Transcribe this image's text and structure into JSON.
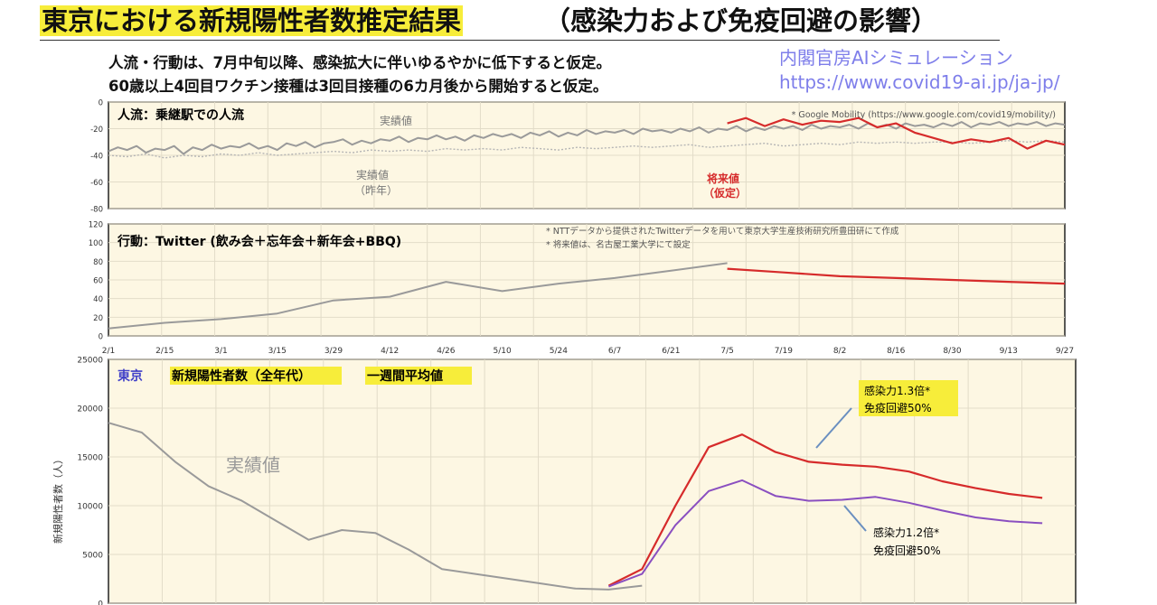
{
  "page": {
    "title_highlight": "東京における新規陽性者数推定結果",
    "title_rest": "（感染力および免疫回避の影響）",
    "assumption1": "人流・行動は、7月中旬以降、感染拡大に伴いゆるやかに低下すると仮定。",
    "assumption2": "60歳以上4回目ワクチン接種は3回目接種の6カ月後から開始すると仮定。",
    "credit_org": "内閣官房AIシミュレーション",
    "credit_url": "https://www.covid19-ai.jp/ja-jp/"
  },
  "colors": {
    "panel_bg": "#fdf7e3",
    "actual": "#9a9a9a",
    "last_year": "#b5b5b5",
    "forecast": "#d62b2b",
    "scenario_low": "#8a4fc0",
    "highlight": "#f7ed3a",
    "region_text": "#4040c8"
  },
  "chart_data": [
    {
      "type": "line",
      "panel": "mobility",
      "title": "人流：乗継駅での人流",
      "note": "* Google Mobility (https://www.google.com/covid19/mobility/)",
      "ylim": [
        -80,
        0
      ],
      "yticks": [
        0,
        -20,
        -40,
        -60,
        -80
      ],
      "grid": true,
      "annotations": {
        "actual": "実績値",
        "last_year": "実績値",
        "last_year_sub": "（昨年）",
        "forecast": "将来値",
        "forecast_sub": "（仮定）"
      },
      "series": [
        {
          "name": "実績値",
          "x": [
            0,
            10,
            20,
            30,
            40,
            50,
            60,
            70,
            80,
            90,
            100,
            110,
            120,
            130,
            140,
            150,
            160,
            170,
            180,
            190,
            200,
            210,
            220,
            230,
            240,
            250,
            260,
            270,
            280,
            290,
            300,
            310,
            320,
            330,
            340,
            350,
            360,
            370,
            380,
            390,
            400,
            410,
            420,
            430,
            440,
            450,
            460,
            470,
            480,
            490,
            500,
            510,
            520,
            530,
            540,
            550,
            560,
            570,
            580,
            590,
            600,
            610,
            620,
            630,
            640,
            650,
            660,
            670,
            680,
            690,
            700,
            710,
            720,
            730,
            740,
            750,
            760,
            770,
            780,
            790,
            800,
            810,
            820,
            830,
            840,
            850,
            860,
            870,
            880,
            890,
            900,
            910,
            920,
            930,
            940,
            950,
            960,
            970,
            980,
            990,
            1000,
            1010,
            1020
          ],
          "y": [
            -37,
            -34,
            -36,
            -33,
            -38,
            -35,
            -36,
            -33,
            -39,
            -34,
            -36,
            -32,
            -35,
            -33,
            -34,
            -31,
            -35,
            -33,
            -36,
            -31,
            -33,
            -30,
            -34,
            -31,
            -30,
            -28,
            -32,
            -29,
            -31,
            -28,
            -29,
            -26,
            -30,
            -27,
            -28,
            -25,
            -28,
            -26,
            -29,
            -25,
            -27,
            -24,
            -26,
            -24,
            -27,
            -23,
            -25,
            -22,
            -26,
            -23,
            -25,
            -21,
            -24,
            -22,
            -23,
            -21,
            -24,
            -20,
            -22,
            -21,
            -23,
            -20,
            -22,
            -19,
            -23,
            -20,
            -21,
            -18,
            -22,
            -19,
            -21,
            -18,
            -20,
            -18,
            -21,
            -17,
            -20,
            -18,
            -19,
            -17,
            -20,
            -16,
            -19,
            -17,
            -20,
            -16,
            -18,
            -17,
            -19,
            -16,
            -18,
            -15,
            -19,
            -16,
            -17,
            -15,
            -18,
            -16,
            -17,
            -15,
            -18,
            -16,
            -17
          ]
        },
        {
          "name": "実績値（昨年）",
          "x": [
            0,
            20,
            40,
            60,
            80,
            100,
            120,
            140,
            160,
            180,
            200,
            220,
            240,
            260,
            280,
            300,
            320,
            340,
            360,
            380,
            400,
            420,
            440,
            460,
            480,
            500,
            520,
            540,
            560,
            580,
            600,
            620,
            640,
            660,
            680,
            700,
            720,
            740,
            760,
            780,
            800,
            820,
            840,
            860,
            880,
            900,
            920,
            940,
            960,
            980,
            1000,
            1020
          ],
          "y": [
            -40,
            -41,
            -39,
            -42,
            -40,
            -41,
            -39,
            -40,
            -38,
            -40,
            -39,
            -38,
            -37,
            -38,
            -36,
            -37,
            -36,
            -37,
            -35,
            -36,
            -35,
            -36,
            -34,
            -35,
            -36,
            -34,
            -35,
            -34,
            -33,
            -34,
            -33,
            -32,
            -34,
            -33,
            -32,
            -31,
            -33,
            -32,
            -31,
            -32,
            -30,
            -31,
            -30,
            -31,
            -30,
            -30,
            -31,
            -30,
            -29,
            -30,
            -29,
            -30
          ]
        },
        {
          "name": "将来値",
          "x": [
            660,
            680,
            700,
            720,
            740,
            760,
            780,
            800,
            820,
            840,
            860,
            880,
            900,
            920,
            940,
            960,
            980,
            1000,
            1020
          ],
          "y": [
            -16,
            -12,
            -18,
            -13,
            -17,
            -14,
            -15,
            -12,
            -19,
            -16,
            -23,
            -27,
            -31,
            -28,
            -30,
            -27,
            -35,
            -29,
            -32
          ]
        }
      ]
    },
    {
      "type": "line",
      "panel": "behavior",
      "title": "行動：Twitter (飲み会＋忘年会＋新年会+BBQ)",
      "note1": "* NTTデータから提供されたTwitterデータを用いて東京大学生産技術研究所豊田研にて作成",
      "note2": "* 将来値は、名古屋工業大学にて設定",
      "ylim": [
        0,
        120
      ],
      "yticks": [
        0,
        20,
        40,
        60,
        80,
        100,
        120
      ],
      "grid": true,
      "x_ticks": [
        "2/1",
        "2/15",
        "3/1",
        "3/15",
        "3/29",
        "4/12",
        "4/26",
        "5/10",
        "5/24",
        "6/7",
        "6/21",
        "7/5",
        "7/19",
        "8/2",
        "8/16",
        "8/30",
        "9/13",
        "9/27"
      ],
      "series": [
        {
          "name": "実績値",
          "x": [
            0,
            14,
            28,
            42,
            56,
            70,
            84,
            98,
            112,
            126,
            140,
            154
          ],
          "y": [
            8,
            14,
            18,
            24,
            38,
            42,
            58,
            48,
            56,
            62,
            70,
            78
          ]
        },
        {
          "name": "将来値",
          "x": [
            154,
            168,
            182,
            196,
            210,
            224,
            238
          ],
          "y": [
            72,
            68,
            64,
            62,
            60,
            58,
            56
          ]
        }
      ]
    },
    {
      "type": "line",
      "panel": "cases",
      "title_region": "東京",
      "title_mid": "新規陽性者数（全年代）",
      "title_end": "一週間平均値",
      "ylabel": "新規陽性者数（人）",
      "ylim": [
        0,
        25000
      ],
      "yticks": [
        0,
        5000,
        10000,
        15000,
        20000,
        25000
      ],
      "grid": true,
      "annotations": {
        "actual": "実績値",
        "high_line1": "感染力1.3倍*",
        "high_line2": "免疫回避50%",
        "low_line1": "感染力1.2倍*",
        "low_line2": "免疫回避50%"
      },
      "series": [
        {
          "name": "実績値",
          "x": [
            0,
            10,
            20,
            30,
            40,
            50,
            60,
            70,
            80,
            90,
            100,
            110,
            120,
            130,
            140,
            150,
            160
          ],
          "y": [
            18500,
            17500,
            14500,
            12000,
            10500,
            8500,
            6500,
            7500,
            7200,
            5500,
            3500,
            3000,
            2500,
            2000,
            1500,
            1400,
            1800
          ]
        },
        {
          "name": "感染力1.3倍* 免疫回避50%",
          "x": [
            150,
            160,
            170,
            180,
            190,
            200,
            210,
            220,
            230,
            240,
            250,
            260,
            270,
            280
          ],
          "y": [
            1800,
            3500,
            10000,
            16000,
            17300,
            15500,
            14500,
            14200,
            14000,
            13500,
            12500,
            11800,
            11200,
            10800
          ]
        },
        {
          "name": "感染力1.2倍* 免疫回避50%",
          "x": [
            150,
            160,
            170,
            180,
            190,
            200,
            210,
            220,
            230,
            240,
            250,
            260,
            270,
            280
          ],
          "y": [
            1700,
            3000,
            8000,
            11500,
            12600,
            11000,
            10500,
            10600,
            10900,
            10300,
            9500,
            8800,
            8400,
            8200
          ]
        }
      ]
    }
  ]
}
